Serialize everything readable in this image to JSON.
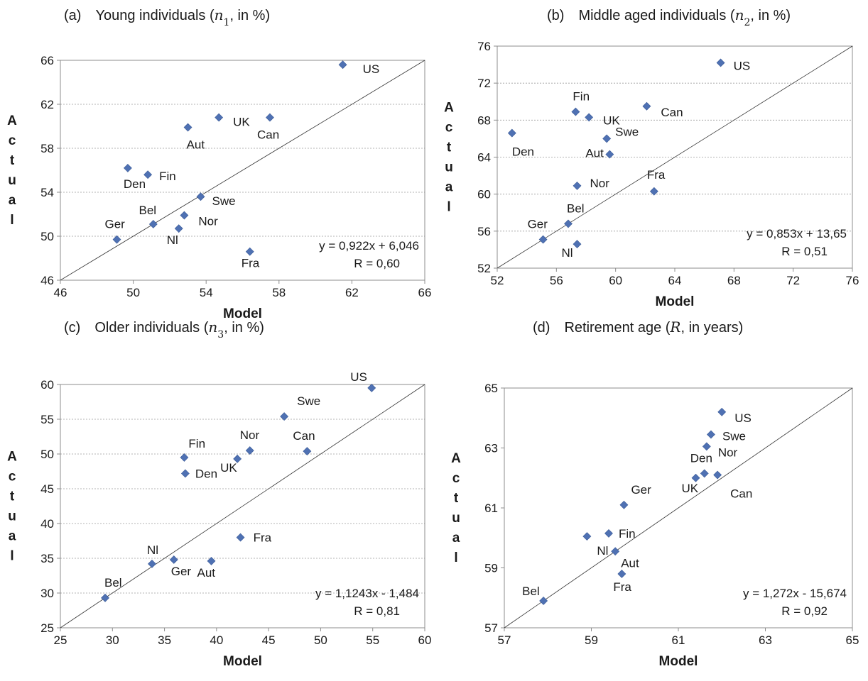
{
  "chart_data": [
    {
      "type": "scatter",
      "title_prefix": "(a)",
      "title_main": "Young individuals (",
      "title_var": "n",
      "title_sub": "1",
      "title_suffix": ", in %)",
      "xlabel": "Model",
      "ylabel": "Actual",
      "xlim": [
        46,
        66
      ],
      "ylim": [
        46,
        66
      ],
      "xticks": [
        46,
        50,
        54,
        58,
        62,
        66
      ],
      "yticks": [
        46,
        50,
        54,
        58,
        62,
        66
      ],
      "grid": "horizontal",
      "marker": "diamond",
      "marker_color": "#4F71B3",
      "equation": "y = 0,922x + 6,046",
      "r_text": "R = 0,60",
      "points": [
        {
          "label": "US",
          "x": 61.5,
          "y": 65.6
        },
        {
          "label": "UK",
          "x": 54.7,
          "y": 60.8
        },
        {
          "label": "Can",
          "x": 57.5,
          "y": 60.8
        },
        {
          "label": "Aut",
          "x": 53.0,
          "y": 59.9
        },
        {
          "label": "Den",
          "x": 49.7,
          "y": 56.2
        },
        {
          "label": "Fin",
          "x": 50.8,
          "y": 55.6
        },
        {
          "label": "Swe",
          "x": 53.7,
          "y": 53.6
        },
        {
          "label": "Bel",
          "x": 51.1,
          "y": 51.1
        },
        {
          "label": "Nor",
          "x": 52.8,
          "y": 51.9
        },
        {
          "label": "Nl",
          "x": 52.5,
          "y": 50.7
        },
        {
          "label": "Ger",
          "x": 49.1,
          "y": 49.7
        },
        {
          "label": "Fra",
          "x": 56.4,
          "y": 48.6
        }
      ]
    },
    {
      "type": "scatter",
      "title_prefix": "(b)",
      "title_main": "Middle aged individuals (",
      "title_var": "n",
      "title_sub": "2",
      "title_suffix": ", in %)",
      "xlabel": "Model",
      "ylabel": "Actual",
      "xlim": [
        52,
        76
      ],
      "ylim": [
        52,
        76
      ],
      "xticks": [
        52,
        56,
        60,
        64,
        68,
        72,
        76
      ],
      "yticks": [
        52,
        56,
        60,
        64,
        68,
        72,
        76
      ],
      "grid": "horizontal",
      "marker": "diamond",
      "marker_color": "#4F71B3",
      "equation": "y = 0,853x + 13,65",
      "r_text": "R = 0,51",
      "points": [
        {
          "label": "US",
          "x": 67.1,
          "y": 74.2
        },
        {
          "label": "Fin",
          "x": 57.3,
          "y": 68.9
        },
        {
          "label": "UK",
          "x": 58.2,
          "y": 68.3
        },
        {
          "label": "Can",
          "x": 62.1,
          "y": 69.5
        },
        {
          "label": "Den",
          "x": 53.0,
          "y": 66.6
        },
        {
          "label": "Swe",
          "x": 59.4,
          "y": 66.0
        },
        {
          "label": "Aut",
          "x": 59.6,
          "y": 64.3
        },
        {
          "label": "Nor",
          "x": 57.4,
          "y": 60.9
        },
        {
          "label": "Fra",
          "x": 62.6,
          "y": 60.3
        },
        {
          "label": "Bel",
          "x": 56.8,
          "y": 56.8
        },
        {
          "label": "Ger",
          "x": 55.1,
          "y": 55.1
        },
        {
          "label": "Nl",
          "x": 57.4,
          "y": 54.6
        }
      ]
    },
    {
      "type": "scatter",
      "title_prefix": "(c)",
      "title_main": "Older individuals (",
      "title_var": "n",
      "title_sub": "3",
      "title_suffix": ", in %)",
      "xlabel": "Model",
      "ylabel": "Actual",
      "xlim": [
        25,
        60
      ],
      "ylim": [
        25,
        60
      ],
      "xticks": [
        25,
        30,
        35,
        40,
        45,
        50,
        55,
        60
      ],
      "yticks": [
        25,
        30,
        35,
        40,
        45,
        50,
        55,
        60
      ],
      "grid": "horizontal",
      "marker": "diamond",
      "marker_color": "#4F71B3",
      "equation": "y = 1,1243x - 1,484",
      "r_text": "R = 0,81",
      "points": [
        {
          "label": "US",
          "x": 54.9,
          "y": 59.5
        },
        {
          "label": "Swe",
          "x": 46.5,
          "y": 55.4
        },
        {
          "label": "Fin",
          "x": 36.9,
          "y": 49.5
        },
        {
          "label": "Nor",
          "x": 43.2,
          "y": 50.5
        },
        {
          "label": "Can",
          "x": 48.7,
          "y": 50.4
        },
        {
          "label": "UK",
          "x": 42.0,
          "y": 49.3
        },
        {
          "label": "Den",
          "x": 37.0,
          "y": 47.2
        },
        {
          "label": "Fra",
          "x": 42.3,
          "y": 38.0
        },
        {
          "label": "Nl",
          "x": 33.8,
          "y": 34.2
        },
        {
          "label": "Ger",
          "x": 35.9,
          "y": 34.8
        },
        {
          "label": "Aut",
          "x": 39.5,
          "y": 34.6
        },
        {
          "label": "Bel",
          "x": 29.3,
          "y": 29.3
        }
      ]
    },
    {
      "type": "scatter",
      "title_prefix": "(d)",
      "title_main": "Retirement age (",
      "title_var": "R",
      "title_sub": "",
      "title_suffix": ", in years)",
      "xlabel": "Model",
      "ylabel": "Actual",
      "xlim": [
        57,
        65
      ],
      "ylim": [
        57,
        65
      ],
      "xticks": [
        57,
        59,
        61,
        63,
        65
      ],
      "yticks": [
        57,
        59,
        61,
        63,
        65
      ],
      "grid": "none",
      "marker": "diamond",
      "marker_color": "#4F71B3",
      "equation": "y = 1,272x - 15,674",
      "r_text": "R = 0,92",
      "points": [
        {
          "label": "US",
          "x": 62.0,
          "y": 64.2
        },
        {
          "label": "Swe",
          "x": 61.75,
          "y": 63.45
        },
        {
          "label": "Nor",
          "x": 61.65,
          "y": 63.05
        },
        {
          "label": "Den",
          "x": 61.6,
          "y": 62.15
        },
        {
          "label": "UK",
          "x": 61.4,
          "y": 62.0
        },
        {
          "label": "Can",
          "x": 61.9,
          "y": 62.1
        },
        {
          "label": "Ger",
          "x": 59.75,
          "y": 61.1
        },
        {
          "label": "Fin",
          "x": 59.4,
          "y": 60.15
        },
        {
          "label": "Nl",
          "x": 58.9,
          "y": 60.05
        },
        {
          "label": "Aut",
          "x": 59.55,
          "y": 59.55
        },
        {
          "label": "Fra",
          "x": 59.7,
          "y": 58.8
        },
        {
          "label": "Bel",
          "x": 57.9,
          "y": 57.9
        }
      ]
    }
  ]
}
